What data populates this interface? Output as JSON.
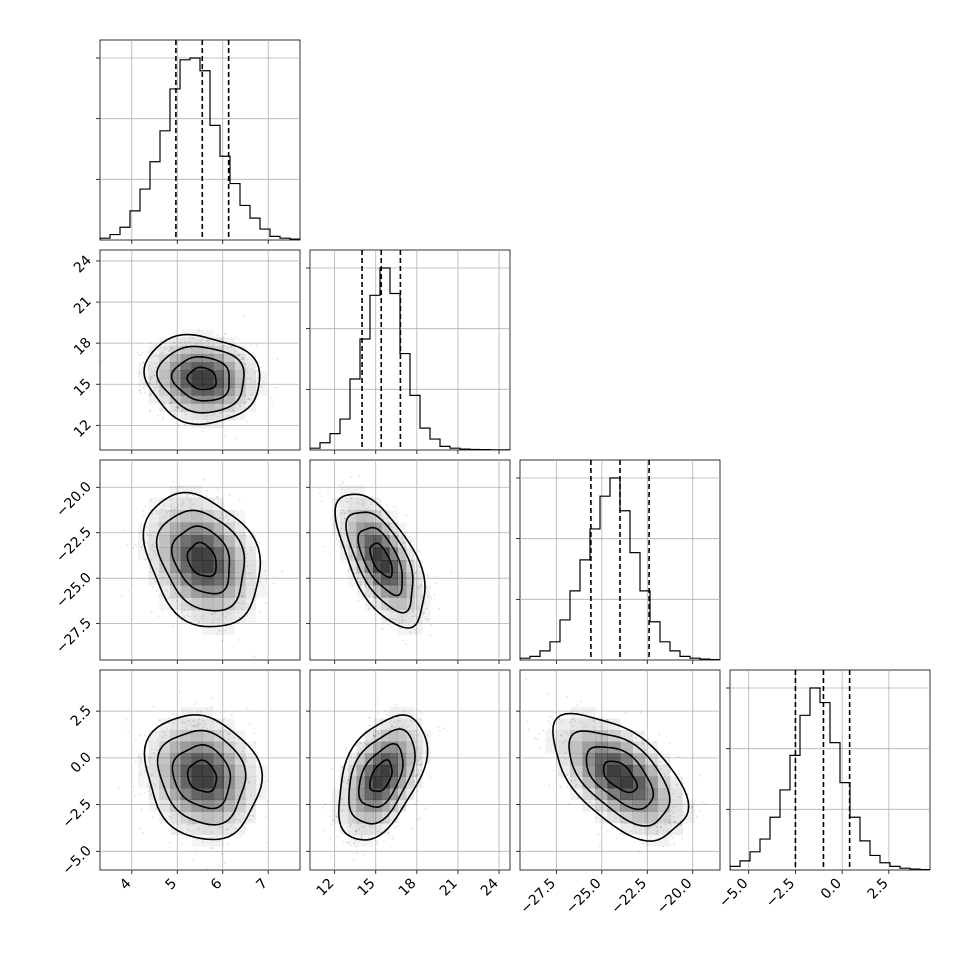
{
  "colors": {
    "line": "#000000",
    "grid": "#b0b0b0",
    "density_dark": "#000000",
    "density_light": "#ffffff",
    "scatter": "#9a9a9a"
  },
  "chart_data": {
    "type": "corner",
    "grid": true,
    "parameters": [
      {
        "range": [
          3.3,
          7.7
        ],
        "ticks": [
          4,
          5,
          6,
          7
        ],
        "tick_labels": [
          "4",
          "5",
          "6",
          "7"
        ],
        "quantiles": [
          4.97,
          5.55,
          6.13
        ],
        "median": 5.55,
        "sigma": 0.55,
        "hist_counts": [
          0.01,
          0.03,
          0.07,
          0.16,
          0.28,
          0.43,
          0.6,
          0.83,
          0.99,
          1.0,
          0.93,
          0.63,
          0.46,
          0.31,
          0.19,
          0.12,
          0.06,
          0.02,
          0.01,
          0.005
        ]
      },
      {
        "range": [
          10.2,
          24.8
        ],
        "ticks": [
          12,
          15,
          18,
          21,
          24
        ],
        "tick_labels": [
          "12",
          "15",
          "18",
          "21",
          "24"
        ],
        "quantiles": [
          14.0,
          15.4,
          16.8
        ],
        "median": 15.4,
        "sigma": 1.4,
        "hist_counts": [
          0.01,
          0.04,
          0.09,
          0.17,
          0.39,
          0.61,
          0.85,
          1.0,
          0.86,
          0.53,
          0.3,
          0.12,
          0.06,
          0.02,
          0.01,
          0.005,
          0.003,
          0.002,
          0.001,
          0.001
        ]
      },
      {
        "range": [
          -29.5,
          -18.5
        ],
        "ticks": [
          -27.5,
          -25.0,
          -22.5,
          -20.0
        ],
        "tick_labels": [
          "−27.5",
          "−25.0",
          "−22.5",
          "−20.0"
        ],
        "quantiles": [
          -25.6,
          -24.0,
          -22.4
        ],
        "median": -24.0,
        "sigma": 1.6,
        "hist_counts": [
          0.01,
          0.02,
          0.05,
          0.1,
          0.22,
          0.38,
          0.55,
          0.72,
          0.9,
          1.0,
          0.82,
          0.59,
          0.38,
          0.21,
          0.1,
          0.05,
          0.02,
          0.01,
          0.005,
          0.002
        ]
      },
      {
        "range": [
          -6.0,
          4.7
        ],
        "ticks": [
          -5.0,
          -2.5,
          0.0,
          2.5
        ],
        "tick_labels": [
          "−5.0",
          "−2.5",
          "0.0",
          "2.5"
        ],
        "quantiles": [
          -2.5,
          -1.0,
          0.4
        ],
        "median": -1.0,
        "sigma": 1.45,
        "hist_counts": [
          0.02,
          0.05,
          0.1,
          0.17,
          0.29,
          0.44,
          0.63,
          0.85,
          1.0,
          0.92,
          0.7,
          0.48,
          0.29,
          0.16,
          0.08,
          0.04,
          0.02,
          0.01,
          0.005,
          0.002
        ]
      }
    ],
    "correlations": [
      [
        1.0,
        -0.1,
        -0.25,
        -0.15
      ],
      [
        -0.1,
        1.0,
        -0.6,
        0.45
      ],
      [
        -0.25,
        -0.6,
        1.0,
        -0.55
      ],
      [
        -0.15,
        0.45,
        -0.55,
        1.0
      ]
    ],
    "contour_levels_sigma": [
      0.5,
      1.0,
      1.5,
      2.0
    ]
  }
}
